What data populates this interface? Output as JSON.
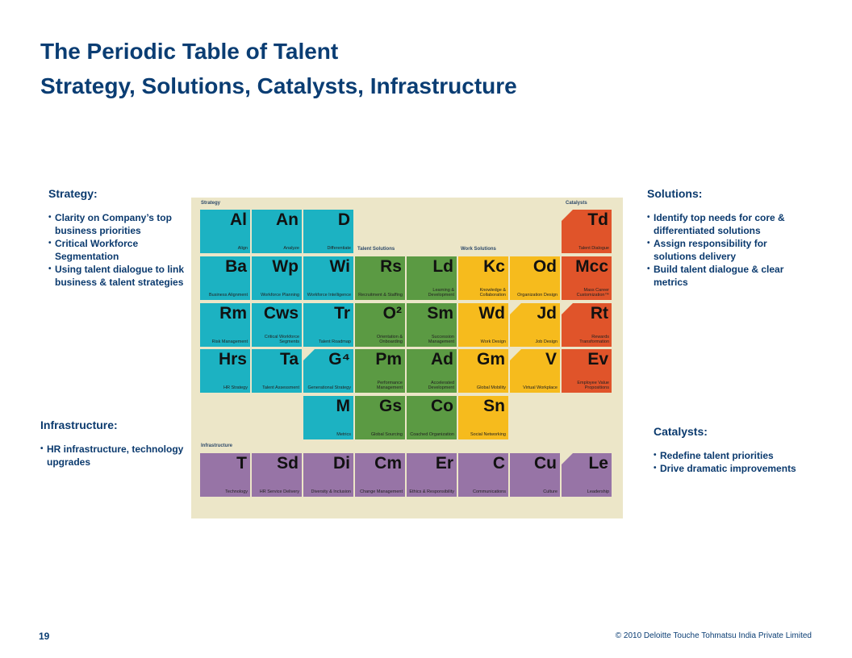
{
  "title_line1": "The Periodic Table of Talent",
  "title_line2": "Strategy, Solutions, Catalysts, Infrastructure",
  "strategy": {
    "heading": "Strategy:",
    "bullets": [
      "Clarity on Company’s top business priorities",
      "Critical Workforce Segmentation",
      "Using talent dialogue to link business & talent strategies"
    ]
  },
  "solutions": {
    "heading": "Solutions:",
    "bullets": [
      "Identify top needs for core & differentiated solutions",
      "Assign responsibility for solutions delivery",
      "Build talent dialogue & clear metrics"
    ]
  },
  "infrastructure": {
    "heading": "Infrastructure:",
    "bullets": [
      "HR infrastructure, technology upgrades"
    ]
  },
  "catalysts": {
    "heading": "Catalysts:",
    "bullets": [
      "Redefine talent priorities",
      "Drive dramatic improvements"
    ]
  },
  "table": {
    "section_labels": {
      "strategy": "Strategy",
      "catalysts": "Catalysts",
      "talent_solutions": "Talent Solutions",
      "work_solutions": "Work Solutions",
      "infrastructure": "Infrastructure"
    },
    "rows": [
      [
        {
          "col": 0,
          "sym": "Al",
          "name": "Align",
          "color": "#1cb2c2"
        },
        {
          "col": 1,
          "sym": "An",
          "name": "Analyze",
          "color": "#1cb2c2"
        },
        {
          "col": 2,
          "sym": "D",
          "name": "Differentiate",
          "color": "#1cb2c2"
        },
        {
          "col": 7,
          "sym": "Td",
          "name": "Talent Dialogue",
          "color": "#e0542a",
          "cut": true
        }
      ],
      [
        {
          "col": 0,
          "sym": "Ba",
          "name": "Business Alignment",
          "color": "#1cb2c2"
        },
        {
          "col": 1,
          "sym": "Wp",
          "name": "Workforce Planning",
          "color": "#1cb2c2"
        },
        {
          "col": 2,
          "sym": "Wi",
          "name": "Workforce Intelligence",
          "color": "#1cb2c2"
        },
        {
          "col": 3,
          "sym": "Rs",
          "name": "Recruitment & Staffing",
          "color": "#5b9a43"
        },
        {
          "col": 4,
          "sym": "Ld",
          "name": "Learning & Development",
          "color": "#5b9a43"
        },
        {
          "col": 5,
          "sym": "Kc",
          "name": "Knowledge & Collaboration",
          "color": "#f6bb1d"
        },
        {
          "col": 6,
          "sym": "Od",
          "name": "Organization Design",
          "color": "#f6bb1d"
        },
        {
          "col": 7,
          "sym": "Mcc",
          "name": "Mass Career Customization™",
          "color": "#e0542a"
        }
      ],
      [
        {
          "col": 0,
          "sym": "Rm",
          "name": "Risk Management",
          "color": "#1cb2c2"
        },
        {
          "col": 1,
          "sym": "Cws",
          "name": "Critical Workforce Segments",
          "color": "#1cb2c2"
        },
        {
          "col": 2,
          "sym": "Tr",
          "name": "Talent Roadmap",
          "color": "#1cb2c2"
        },
        {
          "col": 3,
          "sym": "O²",
          "name": "Orientation & Onboarding",
          "color": "#5b9a43"
        },
        {
          "col": 4,
          "sym": "Sm",
          "name": "Succession Management",
          "color": "#5b9a43"
        },
        {
          "col": 5,
          "sym": "Wd",
          "name": "Work Design",
          "color": "#f6bb1d"
        },
        {
          "col": 6,
          "sym": "Jd",
          "name": "Job Design",
          "color": "#f6bb1d",
          "cut": true
        },
        {
          "col": 7,
          "sym": "Rt",
          "name": "Rewards Transformation",
          "color": "#e0542a",
          "cut": true
        }
      ],
      [
        {
          "col": 0,
          "sym": "Hrs",
          "name": "HR Strategy",
          "color": "#1cb2c2"
        },
        {
          "col": 1,
          "sym": "Ta",
          "name": "Talent Assessment",
          "color": "#1cb2c2"
        },
        {
          "col": 2,
          "sym": "G⁴",
          "name": "Generational Strategy",
          "color": "#1cb2c2",
          "cut": true
        },
        {
          "col": 3,
          "sym": "Pm",
          "name": "Performance Management",
          "color": "#5b9a43"
        },
        {
          "col": 4,
          "sym": "Ad",
          "name": "Accelerated Development",
          "color": "#5b9a43"
        },
        {
          "col": 5,
          "sym": "Gm",
          "name": "Global Mobility",
          "color": "#f6bb1d"
        },
        {
          "col": 6,
          "sym": "V",
          "name": "Virtual Workplace",
          "color": "#f6bb1d",
          "cut": true
        },
        {
          "col": 7,
          "sym": "Ev",
          "name": "Employee Value Propositions",
          "color": "#e0542a"
        }
      ],
      [
        {
          "col": 2,
          "sym": "M",
          "name": "Metrics",
          "color": "#1cb2c2"
        },
        {
          "col": 3,
          "sym": "Gs",
          "name": "Global Sourcing",
          "color": "#5b9a43"
        },
        {
          "col": 4,
          "sym": "Co",
          "name": "Coached Organization",
          "color": "#5b9a43"
        },
        {
          "col": 5,
          "sym": "Sn",
          "name": "Social Networking",
          "color": "#f6bb1d"
        }
      ],
      [
        {
          "col": 0,
          "sym": "T",
          "name": "Technology",
          "color": "#9774a6"
        },
        {
          "col": 1,
          "sym": "Sd",
          "name": "HR Service Delivery",
          "color": "#9774a6"
        },
        {
          "col": 2,
          "sym": "Di",
          "name": "Diversity & Inclusion",
          "color": "#9774a6"
        },
        {
          "col": 3,
          "sym": "Cm",
          "name": "Change Management",
          "color": "#9774a6"
        },
        {
          "col": 4,
          "sym": "Er",
          "name": "Ethics & Responsibility",
          "color": "#9774a6"
        },
        {
          "col": 5,
          "sym": "C",
          "name": "Communications",
          "color": "#9774a6"
        },
        {
          "col": 6,
          "sym": "Cu",
          "name": "Culture",
          "color": "#9774a6"
        },
        {
          "col": 7,
          "sym": "Le",
          "name": "Leadership",
          "color": "#9774a6",
          "cut": true
        }
      ]
    ]
  },
  "footer": {
    "page_number": "19",
    "copyright": "© 2010 Deloitte Touche Tohmatsu India Private Limited"
  }
}
